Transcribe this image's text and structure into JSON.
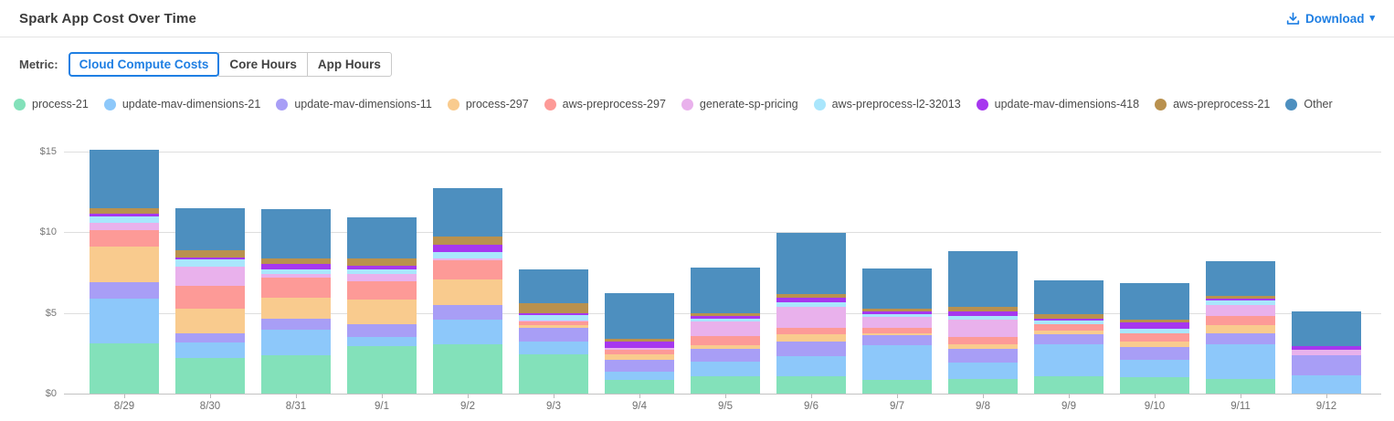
{
  "header": {
    "title": "Spark App Cost Over Time",
    "download_label": "Download",
    "caret": "▾"
  },
  "metric": {
    "label": "Metric:",
    "options": [
      {
        "label": "Cloud Compute Costs",
        "selected": true
      },
      {
        "label": "Core Hours",
        "selected": false
      },
      {
        "label": "App Hours",
        "selected": false
      }
    ]
  },
  "colors": {
    "accent_blue": "#1F7FE3",
    "grid": "#DEDEDE",
    "axis": "#C2C2C2"
  },
  "chart_data": {
    "type": "bar",
    "stacked": true,
    "title": "Spark App Cost Over Time",
    "xlabel": "",
    "ylabel": "",
    "ylim": [
      0,
      15
    ],
    "y_ticks": [
      {
        "label": "$0",
        "value": 0
      },
      {
        "label": "$5",
        "value": 5
      },
      {
        "label": "$10",
        "value": 10
      },
      {
        "label": "$15",
        "value": 15
      }
    ],
    "grid": true,
    "legend_position": "top",
    "categories": [
      "8/29",
      "8/30",
      "8/31",
      "9/1",
      "9/2",
      "9/3",
      "9/4",
      "9/5",
      "9/6",
      "9/7",
      "9/8",
      "9/9",
      "9/10",
      "9/11",
      "9/12"
    ],
    "series": [
      {
        "name": "process-21",
        "color": "#83E1BA",
        "values": [
          3.1,
          2.2,
          2.35,
          2.95,
          3.05,
          2.45,
          0.85,
          1.1,
          1.1,
          0.85,
          0.9,
          1.05,
          1.0,
          0.9,
          0
        ]
      },
      {
        "name": "update-mav-dimensions-21",
        "color": "#8DC8FA",
        "values": [
          2.8,
          0.95,
          1.6,
          0.55,
          1.55,
          0.75,
          0.5,
          0.9,
          1.2,
          2.15,
          1.05,
          2.0,
          1.1,
          2.15,
          1.15
        ]
      },
      {
        "name": "update-mav-dimensions-11",
        "color": "#A89EF6",
        "values": [
          1.0,
          0.6,
          0.7,
          0.8,
          0.9,
          0.85,
          0.75,
          0.75,
          0.9,
          0.6,
          0.8,
          0.6,
          0.8,
          0.7,
          1.2
        ]
      },
      {
        "name": "process-297",
        "color": "#F9CB8E",
        "values": [
          2.2,
          1.5,
          1.3,
          1.5,
          1.6,
          0.2,
          0.35,
          0.25,
          0.5,
          0.15,
          0.3,
          0.25,
          0.3,
          0.5,
          0
        ]
      },
      {
        "name": "aws-preprocess-297",
        "color": "#FD9A97",
        "values": [
          1.05,
          1.4,
          1.25,
          1.15,
          1.15,
          0.2,
          0.25,
          0.55,
          0.4,
          0.35,
          0.45,
          0.4,
          0.55,
          0.55,
          0
        ]
      },
      {
        "name": "generate-sp-pricing",
        "color": "#E9B1EC",
        "values": [
          0.45,
          1.2,
          0.2,
          0.45,
          0.1,
          0.1,
          0.15,
          0.9,
          1.3,
          0.65,
          1.1,
          0,
          0,
          0.7,
          0.35
        ]
      },
      {
        "name": "aws-preprocess-l2-32013",
        "color": "#A9E6FC",
        "values": [
          0.4,
          0.45,
          0.3,
          0.3,
          0.4,
          0.3,
          0,
          0.2,
          0.25,
          0.15,
          0.2,
          0.2,
          0.25,
          0.25,
          0
        ]
      },
      {
        "name": "update-mav-dimensions-418",
        "color": "#A637EF",
        "values": [
          0.15,
          0.15,
          0.35,
          0.25,
          0.45,
          0.15,
          0.4,
          0.15,
          0.3,
          0.2,
          0.3,
          0.15,
          0.4,
          0.15,
          0.25
        ]
      },
      {
        "name": "aws-preprocess-21",
        "color": "#B9914E",
        "values": [
          0.35,
          0.45,
          0.3,
          0.4,
          0.55,
          0.6,
          0.15,
          0.2,
          0.2,
          0.15,
          0.3,
          0.25,
          0.17,
          0.15,
          0
        ]
      },
      {
        "name": "Other",
        "color": "#4D8FBF",
        "values": [
          3.6,
          2.6,
          3.1,
          2.55,
          3.0,
          2.1,
          2.8,
          2.8,
          3.8,
          2.5,
          3.4,
          2.1,
          2.28,
          2.15,
          2.15
        ]
      }
    ]
  }
}
